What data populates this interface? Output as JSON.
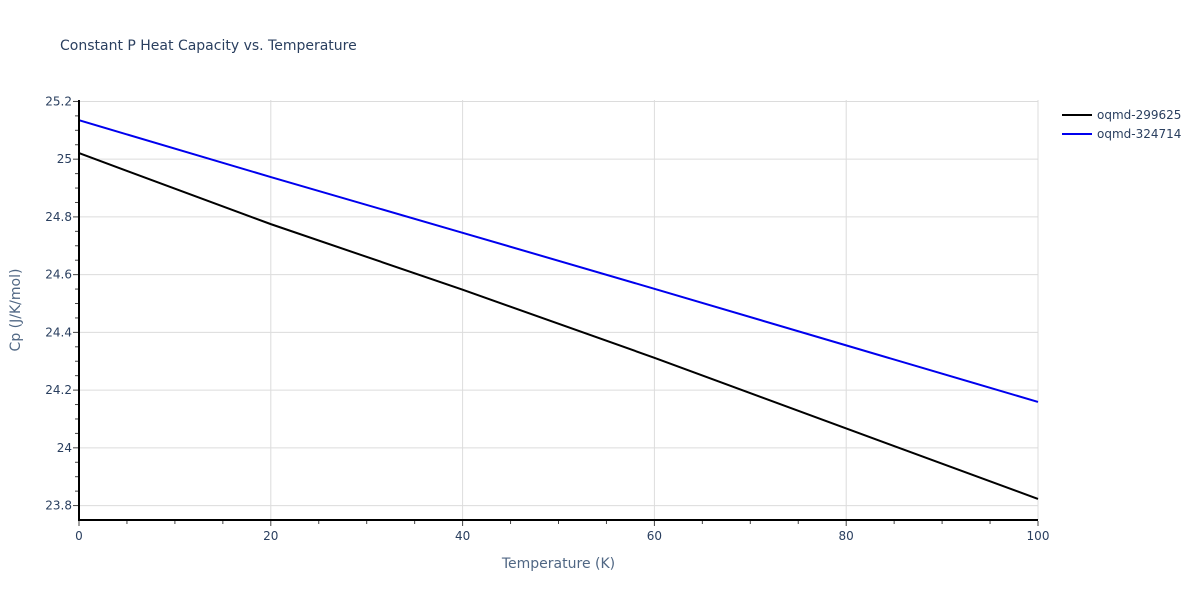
{
  "chart_data": {
    "type": "line",
    "title": "Constant P Heat Capacity vs. Temperature",
    "xlabel": "Temperature (K)",
    "ylabel": "Cp (J/K/mol)",
    "xlim": [
      0,
      100
    ],
    "ylim": [
      23.75,
      25.205
    ],
    "x_ticks": [
      0,
      20,
      40,
      60,
      80,
      100
    ],
    "x_tick_labels": [
      "0",
      "20",
      "40",
      "60",
      "80",
      "100"
    ],
    "x_minor_step": 5,
    "y_ticks": [
      23.8,
      24.0,
      24.2,
      24.4,
      24.6,
      24.8,
      25.0,
      25.2
    ],
    "y_tick_labels": [
      "23.8",
      "24",
      "24.2",
      "24.4",
      "24.6",
      "24.8",
      "25",
      "25.2"
    ],
    "y_minor_step": 0.05,
    "grid": true,
    "legend_position": "top-right-outside",
    "x": [
      0,
      20,
      40,
      60,
      80,
      100
    ],
    "series": [
      {
        "name": "oqmd-299625",
        "color": "#000000",
        "values": [
          25.021,
          24.775,
          24.548,
          24.312,
          24.067,
          23.823
        ]
      },
      {
        "name": "oqmd-324714",
        "color": "#0000ee",
        "values": [
          25.135,
          24.938,
          24.745,
          24.551,
          24.355,
          24.159
        ]
      }
    ]
  }
}
